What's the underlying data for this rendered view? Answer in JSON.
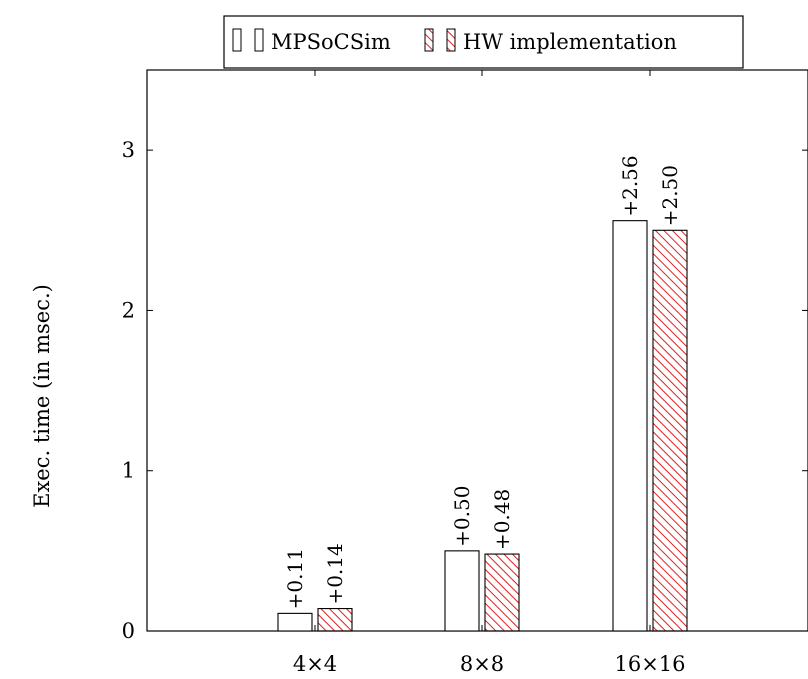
{
  "chart_data": {
    "type": "bar",
    "title": "",
    "xlabel": "",
    "ylabel": "Exec. time (in msec.)",
    "categories": [
      "4×4",
      "8×8",
      "16×16"
    ],
    "ylim": [
      0,
      3.5
    ],
    "yticks": [
      0,
      1,
      2,
      3
    ],
    "ytick_labels": [
      "0",
      "1",
      "2",
      "3"
    ],
    "grid": false,
    "legend_position": "top-center",
    "series": [
      {
        "name": "MPSoCSim",
        "values": [
          0.11,
          0.5,
          2.56
        ],
        "labels": [
          "+0.11",
          "+0.50",
          "+2.56"
        ],
        "fill": "#ffffff",
        "stroke": "#000000",
        "pattern": "none"
      },
      {
        "name": "HW implementation",
        "values": [
          0.14,
          0.48,
          2.5
        ],
        "labels": [
          "+0.14",
          "+0.48",
          "+2.50"
        ],
        "fill": "#ffffff",
        "stroke": "#000000",
        "pattern": "north-east-lines",
        "pattern_color": "#e02020"
      }
    ]
  }
}
